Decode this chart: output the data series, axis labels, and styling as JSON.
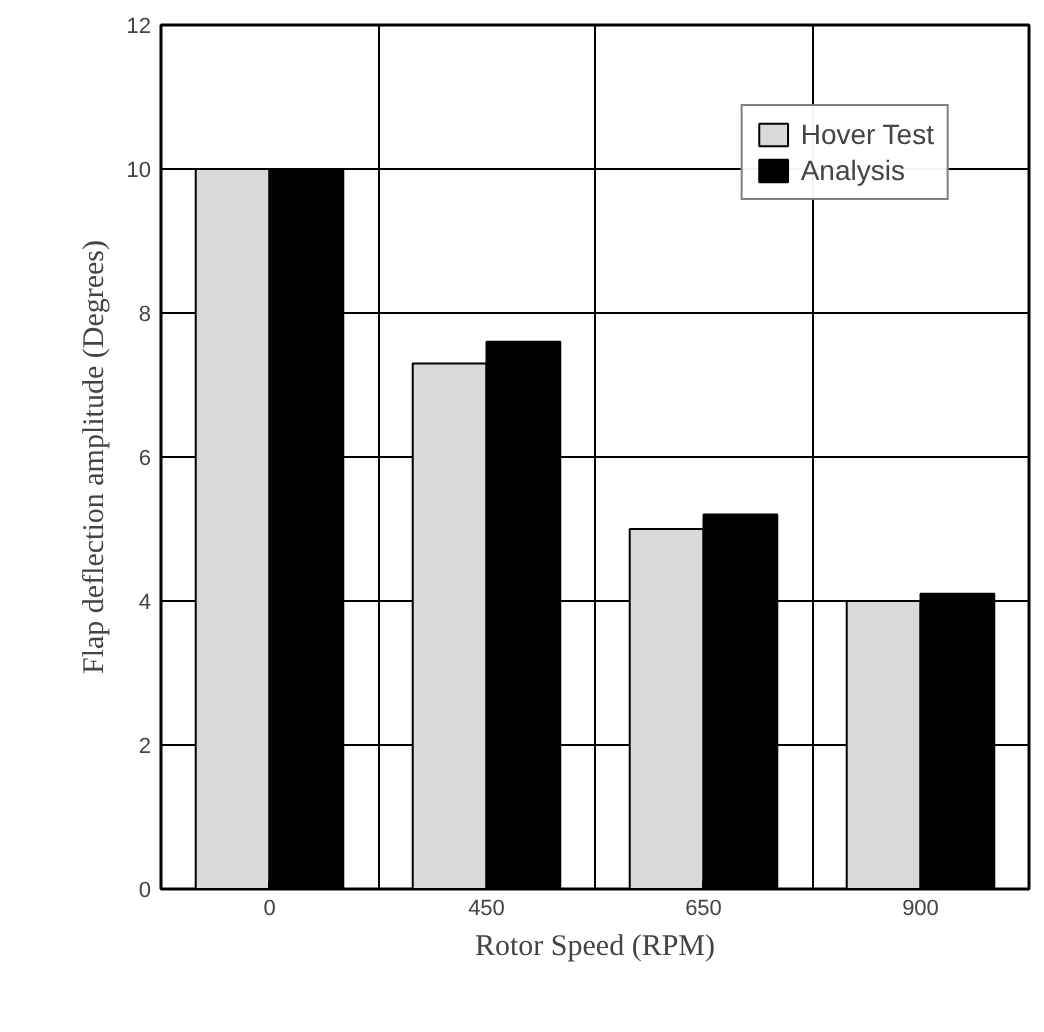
{
  "chart_data": {
    "type": "bar",
    "xlabel": "Rotor Speed (RPM)",
    "ylabel": "Flap deflection amplitude (Degrees)",
    "categories": [
      "0",
      "450",
      "650",
      "900"
    ],
    "series": [
      {
        "name": "Hover Test",
        "color": "#d9d9d9",
        "values": [
          10,
          7.3,
          5.0,
          4.0
        ]
      },
      {
        "name": "Analysis",
        "color": "#000000",
        "values": [
          10,
          7.6,
          5.2,
          4.1
        ]
      }
    ],
    "ylim": [
      0,
      12
    ],
    "yticks": [
      0,
      2,
      4,
      6,
      8,
      10,
      12
    ],
    "grid": true,
    "legend": "top right"
  }
}
